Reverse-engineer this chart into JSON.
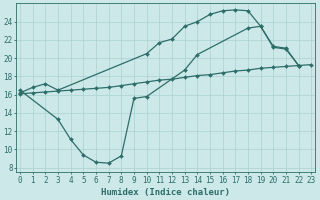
{
  "line1": {
    "x": [
      0,
      1,
      2,
      3,
      4,
      5,
      6,
      7,
      8,
      9,
      10,
      11,
      12,
      13,
      14,
      15,
      16,
      17,
      18,
      19,
      20,
      21,
      22,
      23
    ],
    "y": [
      16.1,
      16.2,
      16.3,
      16.4,
      16.5,
      16.6,
      16.7,
      16.8,
      17.0,
      17.2,
      17.4,
      17.6,
      17.7,
      17.9,
      18.1,
      18.2,
      18.4,
      18.6,
      18.7,
      18.9,
      19.0,
      19.1,
      19.2,
      19.3
    ],
    "color": "#2d6e6a",
    "marker": "D",
    "markersize": 2.0,
    "linewidth": 0.9
  },
  "line2": {
    "x": [
      0,
      1,
      2,
      3,
      10,
      11,
      12,
      13,
      14,
      15,
      16,
      17,
      18,
      19,
      20,
      21,
      22
    ],
    "y": [
      16.2,
      16.8,
      17.2,
      16.5,
      20.5,
      21.7,
      22.1,
      23.5,
      24.0,
      24.8,
      25.2,
      25.3,
      25.2,
      23.5,
      21.2,
      21.0,
      19.2
    ],
    "color": "#2d6e6a",
    "marker": "D",
    "markersize": 2.0,
    "linewidth": 0.9
  },
  "line3": {
    "x": [
      0,
      3,
      4,
      5,
      6,
      7,
      8,
      9,
      10,
      13,
      14,
      18,
      19,
      20,
      21,
      22
    ],
    "y": [
      16.5,
      13.3,
      11.1,
      9.4,
      8.6,
      8.5,
      9.3,
      15.6,
      15.8,
      18.7,
      20.4,
      23.3,
      23.5,
      21.3,
      21.1,
      19.2
    ],
    "color": "#2d6e6a",
    "marker": "D",
    "markersize": 2.0,
    "linewidth": 0.9
  },
  "xlim": [
    -0.3,
    23.3
  ],
  "ylim": [
    7.5,
    26.0
  ],
  "yticks": [
    8,
    10,
    12,
    14,
    16,
    18,
    20,
    22,
    24
  ],
  "xticks": [
    0,
    1,
    2,
    3,
    4,
    5,
    6,
    7,
    8,
    9,
    10,
    11,
    12,
    13,
    14,
    15,
    16,
    17,
    18,
    19,
    20,
    21,
    22,
    23
  ],
  "xlabel": "Humidex (Indice chaleur)",
  "bg_color": "#cce8e8",
  "grid_color": "#aad0d0",
  "line_color": "#2d6e6a",
  "tick_color": "#2d6e6a",
  "label_fontsize": 6.5,
  "tick_fontsize": 5.5
}
